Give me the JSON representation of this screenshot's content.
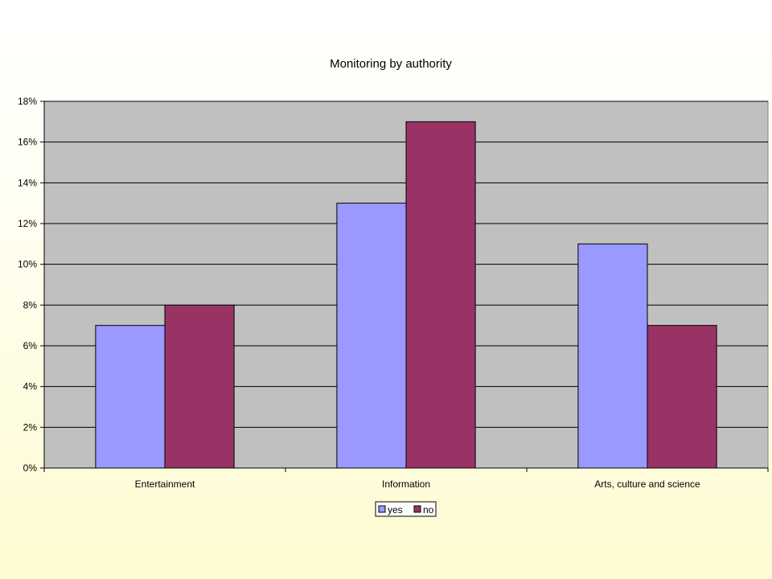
{
  "chart_data": {
    "type": "bar",
    "title": "Monitoring by authority",
    "categories": [
      "Entertainment",
      "Information",
      "Arts, culture and science"
    ],
    "series": [
      {
        "name": "yes",
        "values": [
          7,
          13,
          11
        ],
        "color": "#9999ff"
      },
      {
        "name": "no",
        "values": [
          8,
          17,
          7
        ],
        "color": "#993366"
      }
    ],
    "ylim": [
      0,
      18
    ],
    "y_ticks": [
      0,
      2,
      4,
      6,
      8,
      10,
      12,
      14,
      16,
      18
    ],
    "y_tick_labels": [
      "0%",
      "2%",
      "4%",
      "6%",
      "8%",
      "10%",
      "12%",
      "14%",
      "16%",
      "18%"
    ],
    "grid": true,
    "legend_position": "bottom",
    "plot_background": "#c0c0c0"
  }
}
